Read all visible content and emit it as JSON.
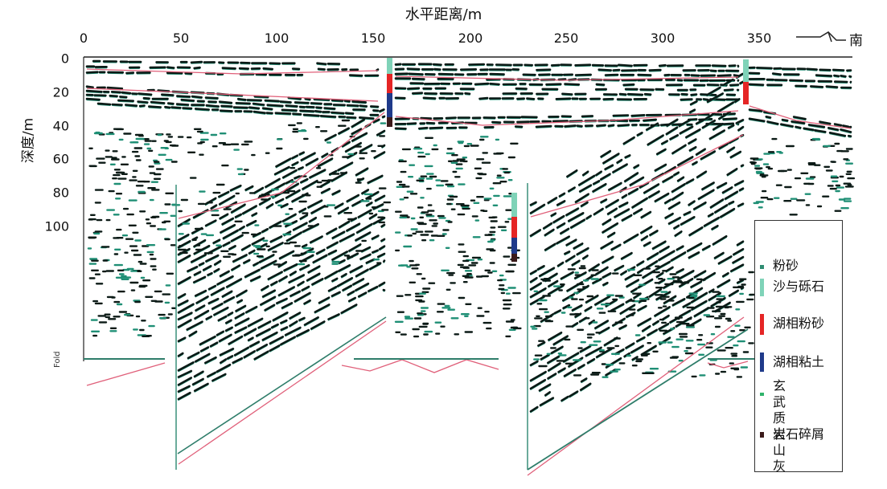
{
  "figure": {
    "x_axis_title": "水平距离/m",
    "y_axis_title": "深度/m",
    "x_ticks": [
      "0",
      "50",
      "100",
      "150",
      "200",
      "250",
      "300",
      "350"
    ],
    "y_ticks": [
      "0",
      "20",
      "40",
      "60",
      "80",
      "100"
    ],
    "direction_label": "南",
    "fold_label": "Fold"
  },
  "legend": {
    "items": [
      {
        "label": "粉砂",
        "color": "#2f8c72"
      },
      {
        "label": "沙与砾石",
        "color": "#7fd3b8"
      },
      {
        "label": "湖相粉砂",
        "color": "#e52525"
      },
      {
        "label": "湖相粘土",
        "color": "#1f3a8a"
      },
      {
        "label": "玄武质\n火山灰",
        "color": "#2fb36b"
      },
      {
        "label": "岩石碎屑",
        "color": "#3a1a1a"
      }
    ]
  },
  "colors": {
    "reflector": "#0b1a16",
    "reflector_edge": "#1f8f75",
    "horizon": "#e0607a",
    "axis": "#222222"
  },
  "icons": [
    "south-arrow-icon"
  ]
}
